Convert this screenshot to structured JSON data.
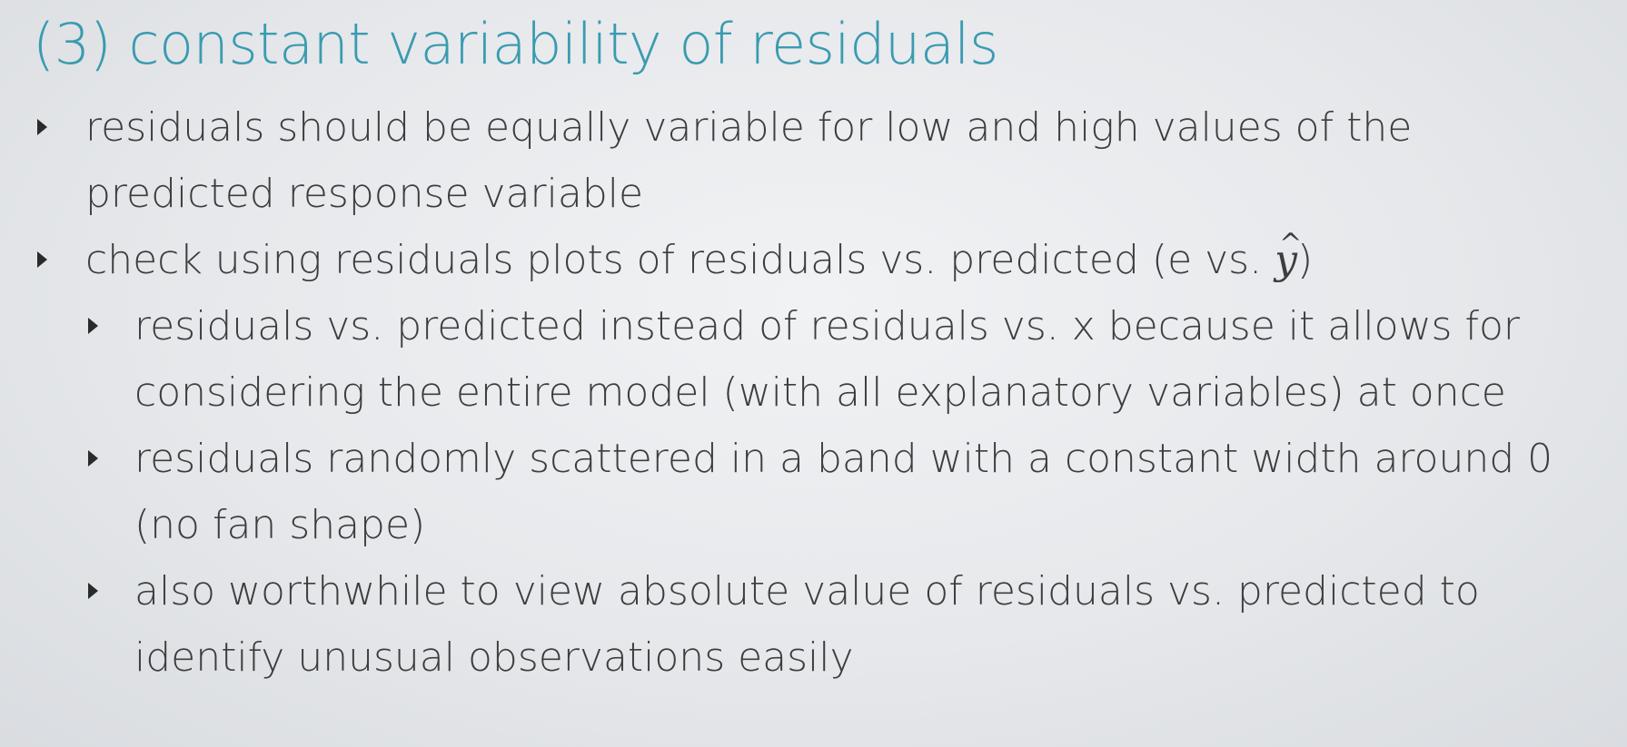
{
  "slide": {
    "title": "(3) constant variability of residuals",
    "bullets": [
      {
        "level": 1,
        "text": "residuals should be equally variable for low and high values of the predicted response variable"
      },
      {
        "level": 1,
        "text_prefix": "check using residuals plots of residuals vs. predicted (e vs. ",
        "math": "y",
        "text_suffix": ")"
      },
      {
        "level": 2,
        "text": "residuals vs. predicted instead of residuals vs. x because it allows for considering the entire model (with all explanatory variables) at once"
      },
      {
        "level": 2,
        "text": "residuals randomly scattered in a band with a constant width around 0 (no fan shape)"
      },
      {
        "level": 2,
        "text": "also worthwhile to view absolute value of residuals vs. predicted to identify unusual observations easily"
      }
    ]
  }
}
